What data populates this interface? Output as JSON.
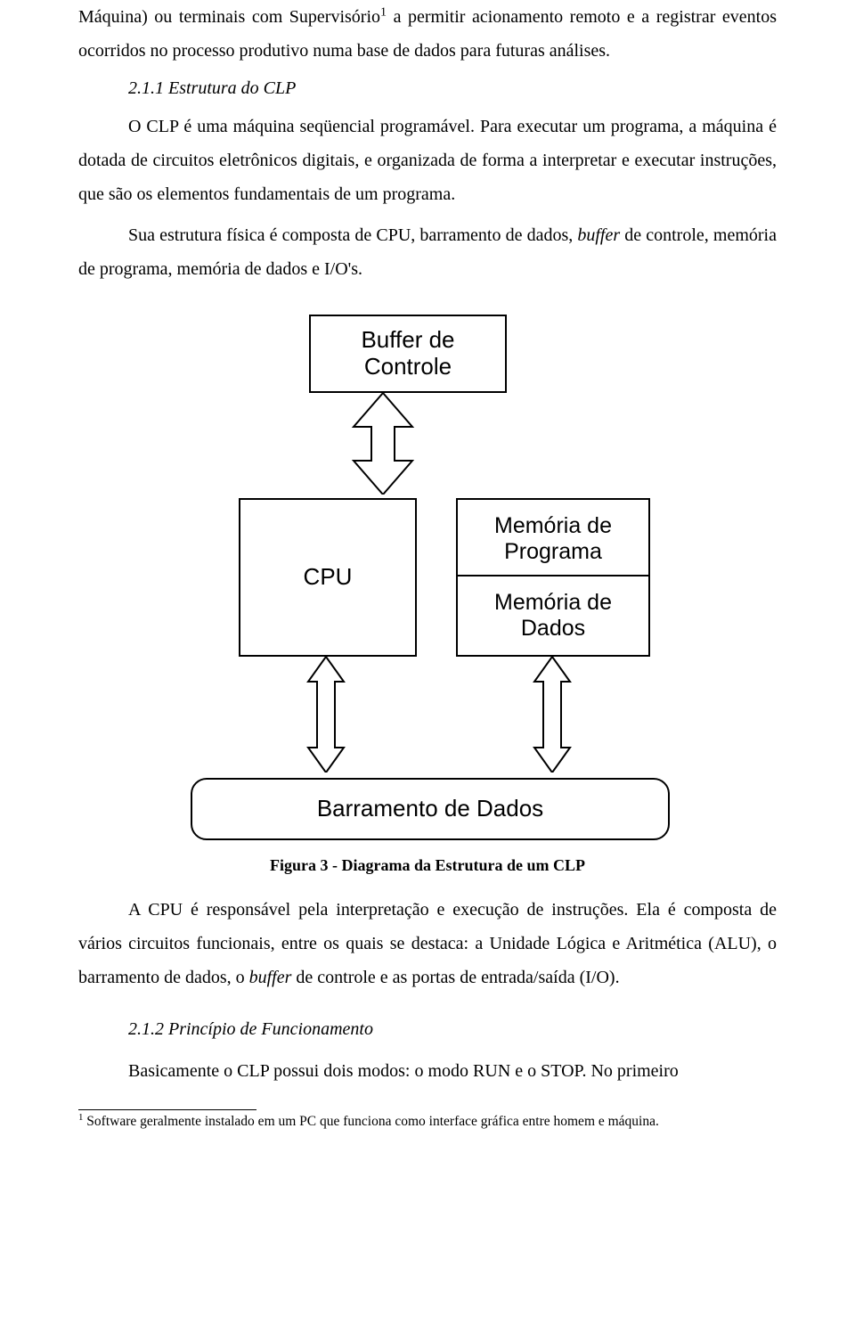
{
  "para1_a": "Máquina) ou terminais com Supervisório",
  "para1_sup": "1",
  "para1_b": " a permitir acionamento remoto e a registrar eventos ocorridos no processo produtivo numa base de dados para futuras análises.",
  "sec211": "2.1.1   Estrutura do CLP",
  "para2": "O CLP é uma máquina seqüencial programável. Para executar um programa, a máquina é dotada de circuitos eletrônicos digitais, e organizada de forma a interpretar e executar instruções, que são os elementos fundamentais de um programa.",
  "para3_a": "Sua estrutura física é composta de CPU, barramento de dados, ",
  "para3_i1": "buffer",
  "para3_b": " de controle, memória de programa, memória de dados e I/O's.",
  "diagram": {
    "buffer": "Buffer de\nControle",
    "cpu": "CPU",
    "mem_prog": "Memória de\nPrograma",
    "mem_dados": "Memória de\nDados",
    "bus": "Barramento de Dados"
  },
  "caption": "Figura 3 - Diagrama da Estrutura de um CLP",
  "para4_a": "A CPU é responsável pela interpretação e execução de instruções. Ela é composta de vários circuitos funcionais, entre os quais se destaca: a Unidade Lógica e Aritmética (ALU), o barramento de dados, o ",
  "para4_i1": "buffer",
  "para4_b": " de controle e as portas de entrada/saída (I/O).",
  "sec212": "2.1.2   Princípio de Funcionamento",
  "para5": "Basicamente o CLP possui dois modos: o modo RUN e o STOP. No primeiro",
  "footnote_num": "1",
  "footnote_text": " Software geralmente instalado em um PC que funciona como interface gráfica entre homem e máquina."
}
